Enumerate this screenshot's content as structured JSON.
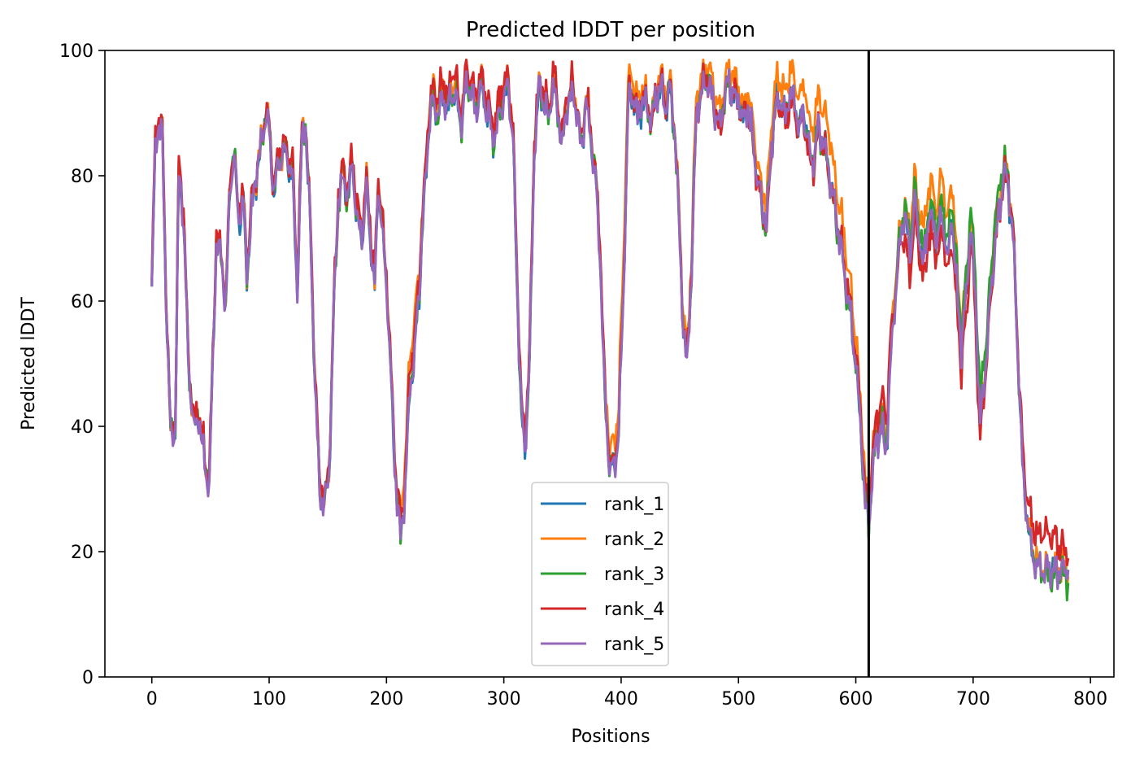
{
  "chart_data": {
    "type": "line",
    "title": "Predicted lDDT per position",
    "xlabel": "Positions",
    "ylabel": "Predicted lDDT",
    "xlim": [
      -40,
      820
    ],
    "ylim": [
      0,
      100
    ],
    "xticks": [
      0,
      100,
      200,
      300,
      400,
      500,
      600,
      700,
      800
    ],
    "yticks": [
      0,
      20,
      40,
      60,
      80,
      100
    ],
    "xtick_labels": [
      "0",
      "100",
      "200",
      "300",
      "400",
      "500",
      "600",
      "700",
      "800"
    ],
    "ytick_labels": [
      "0",
      "20",
      "40",
      "60",
      "80",
      "100"
    ],
    "grid": false,
    "legend_position": "lower-center",
    "vline": {
      "x": 611,
      "color": "#000000"
    },
    "x_range": [
      0,
      781
    ],
    "base_profile": [
      [
        0,
        62
      ],
      [
        3,
        85
      ],
      [
        6,
        89
      ],
      [
        9,
        86
      ],
      [
        12,
        62
      ],
      [
        16,
        38
      ],
      [
        20,
        40
      ],
      [
        23,
        80
      ],
      [
        27,
        74
      ],
      [
        31,
        50
      ],
      [
        36,
        40
      ],
      [
        40,
        42
      ],
      [
        46,
        33
      ],
      [
        49,
        31
      ],
      [
        55,
        70
      ],
      [
        60,
        66
      ],
      [
        63,
        59
      ],
      [
        67,
        80
      ],
      [
        70,
        83
      ],
      [
        74,
        73
      ],
      [
        78,
        76
      ],
      [
        81,
        64
      ],
      [
        85,
        74
      ],
      [
        89,
        80
      ],
      [
        93,
        84
      ],
      [
        97,
        90
      ],
      [
        100,
        87
      ],
      [
        104,
        77
      ],
      [
        108,
        82
      ],
      [
        112,
        84
      ],
      [
        116,
        82
      ],
      [
        120,
        80
      ],
      [
        124,
        62
      ],
      [
        128,
        86
      ],
      [
        131,
        88
      ],
      [
        135,
        72
      ],
      [
        139,
        48
      ],
      [
        143,
        30
      ],
      [
        147,
        27
      ],
      [
        151,
        32
      ],
      [
        155,
        58
      ],
      [
        159,
        76
      ],
      [
        163,
        80
      ],
      [
        167,
        76
      ],
      [
        171,
        82
      ],
      [
        175,
        73
      ],
      [
        179,
        70
      ],
      [
        183,
        78
      ],
      [
        186,
        71
      ],
      [
        190,
        62
      ],
      [
        193,
        79
      ],
      [
        197,
        70
      ],
      [
        201,
        60
      ],
      [
        205,
        42
      ],
      [
        209,
        28
      ],
      [
        212,
        22
      ],
      [
        216,
        30
      ],
      [
        220,
        46
      ],
      [
        224,
        52
      ],
      [
        228,
        62
      ],
      [
        232,
        75
      ],
      [
        236,
        88
      ],
      [
        240,
        92
      ],
      [
        244,
        89
      ],
      [
        248,
        93
      ],
      [
        252,
        90
      ],
      [
        256,
        94
      ],
      [
        260,
        92
      ],
      [
        264,
        88
      ],
      [
        268,
        95
      ],
      [
        272,
        93
      ],
      [
        276,
        90
      ],
      [
        280,
        94
      ],
      [
        284,
        92
      ],
      [
        288,
        88
      ],
      [
        292,
        86
      ],
      [
        296,
        90
      ],
      [
        300,
        93
      ],
      [
        304,
        94
      ],
      [
        308,
        85
      ],
      [
        312,
        58
      ],
      [
        315,
        42
      ],
      [
        318,
        36
      ],
      [
        322,
        50
      ],
      [
        326,
        85
      ],
      [
        330,
        94
      ],
      [
        334,
        92
      ],
      [
        338,
        89
      ],
      [
        342,
        95
      ],
      [
        346,
        90
      ],
      [
        350,
        85
      ],
      [
        354,
        92
      ],
      [
        358,
        93
      ],
      [
        362,
        91
      ],
      [
        366,
        84
      ],
      [
        370,
        92
      ],
      [
        374,
        86
      ],
      [
        378,
        80
      ],
      [
        382,
        68
      ],
      [
        386,
        45
      ],
      [
        390,
        34
      ],
      [
        394,
        33
      ],
      [
        398,
        40
      ],
      [
        402,
        62
      ],
      [
        406,
        92
      ],
      [
        410,
        93
      ],
      [
        414,
        89
      ],
      [
        418,
        92
      ],
      [
        422,
        91
      ],
      [
        426,
        88
      ],
      [
        430,
        93
      ],
      [
        434,
        94
      ],
      [
        438,
        91
      ],
      [
        442,
        94
      ],
      [
        446,
        86
      ],
      [
        450,
        70
      ],
      [
        453,
        56
      ],
      [
        456,
        50
      ],
      [
        460,
        65
      ],
      [
        464,
        90
      ],
      [
        468,
        93
      ],
      [
        472,
        96
      ],
      [
        476,
        94
      ],
      [
        480,
        90
      ],
      [
        484,
        87
      ],
      [
        488,
        93
      ],
      [
        492,
        95
      ],
      [
        496,
        93
      ],
      [
        500,
        92
      ],
      [
        504,
        89
      ],
      [
        508,
        91
      ],
      [
        512,
        86
      ],
      [
        516,
        80
      ],
      [
        520,
        75
      ],
      [
        524,
        72
      ],
      [
        528,
        85
      ],
      [
        532,
        92
      ],
      [
        536,
        92
      ],
      [
        540,
        89
      ],
      [
        544,
        93
      ],
      [
        548,
        91
      ],
      [
        552,
        88
      ],
      [
        556,
        90
      ],
      [
        560,
        84
      ],
      [
        564,
        82
      ],
      [
        568,
        88
      ],
      [
        572,
        85
      ],
      [
        576,
        82
      ],
      [
        580,
        77
      ],
      [
        584,
        72
      ],
      [
        588,
        68
      ],
      [
        592,
        62
      ],
      [
        596,
        57
      ],
      [
        600,
        50
      ],
      [
        604,
        40
      ],
      [
        608,
        28
      ],
      [
        611,
        24
      ],
      [
        614,
        32
      ],
      [
        618,
        38
      ],
      [
        622,
        40
      ],
      [
        626,
        36
      ],
      [
        630,
        52
      ],
      [
        634,
        62
      ],
      [
        638,
        70
      ],
      [
        642,
        74
      ],
      [
        646,
        67
      ],
      [
        650,
        76
      ],
      [
        654,
        70
      ],
      [
        658,
        66
      ],
      [
        662,
        74
      ],
      [
        666,
        72
      ],
      [
        670,
        70
      ],
      [
        674,
        74
      ],
      [
        678,
        66
      ],
      [
        682,
        74
      ],
      [
        686,
        62
      ],
      [
        690,
        52
      ],
      [
        694,
        60
      ],
      [
        698,
        72
      ],
      [
        702,
        60
      ],
      [
        706,
        40
      ],
      [
        710,
        48
      ],
      [
        714,
        58
      ],
      [
        718,
        68
      ],
      [
        722,
        74
      ],
      [
        726,
        80
      ],
      [
        730,
        78
      ],
      [
        734,
        70
      ],
      [
        738,
        52
      ],
      [
        742,
        34
      ],
      [
        746,
        25
      ],
      [
        750,
        20
      ],
      [
        754,
        18
      ],
      [
        758,
        17
      ],
      [
        762,
        17
      ],
      [
        766,
        17
      ],
      [
        770,
        17
      ],
      [
        774,
        17
      ],
      [
        778,
        17
      ],
      [
        781,
        17
      ]
    ],
    "series": [
      {
        "name": "rank_1",
        "color": "#1f77b4",
        "offset": [
          [
            0,
            0.0
          ],
          [
            781,
            0.0
          ]
        ],
        "noise": 1.2,
        "seed": 11
      },
      {
        "name": "rank_2",
        "color": "#ff7f0e",
        "offset": [
          [
            0,
            0.5
          ],
          [
            200,
            0.5
          ],
          [
            220,
            6.0
          ],
          [
            235,
            2.0
          ],
          [
            380,
            1.0
          ],
          [
            400,
            5.0
          ],
          [
            420,
            1.5
          ],
          [
            500,
            2.5
          ],
          [
            540,
            3.5
          ],
          [
            580,
            6.0
          ],
          [
            611,
            3.0
          ],
          [
            640,
            2.0
          ],
          [
            660,
            5.0
          ],
          [
            680,
            6.0
          ],
          [
            700,
            2.0
          ],
          [
            781,
            0.0
          ]
        ],
        "noise": 1.2,
        "seed": 23
      },
      {
        "name": "rank_3",
        "color": "#2ca02c",
        "offset": [
          [
            0,
            0.5
          ],
          [
            600,
            0.0
          ],
          [
            640,
            1.0
          ],
          [
            720,
            4.0
          ],
          [
            740,
            0.5
          ],
          [
            781,
            -1.0
          ]
        ],
        "noise": 1.2,
        "seed": 37
      },
      {
        "name": "rank_4",
        "color": "#d62728",
        "offset": [
          [
            0,
            1.0
          ],
          [
            200,
            1.5
          ],
          [
            220,
            3.0
          ],
          [
            560,
            -1.0
          ],
          [
            611,
            2.5
          ],
          [
            625,
            5.0
          ],
          [
            640,
            -3.0
          ],
          [
            700,
            -3.0
          ],
          [
            740,
            2.0
          ],
          [
            760,
            6.0
          ],
          [
            781,
            3.0
          ]
        ],
        "noise": 1.3,
        "seed": 51
      },
      {
        "name": "rank_5",
        "color": "#9467bd",
        "offset": [
          [
            0,
            0.0
          ],
          [
            781,
            0.0
          ]
        ],
        "noise": 1.2,
        "seed": 67
      }
    ]
  }
}
